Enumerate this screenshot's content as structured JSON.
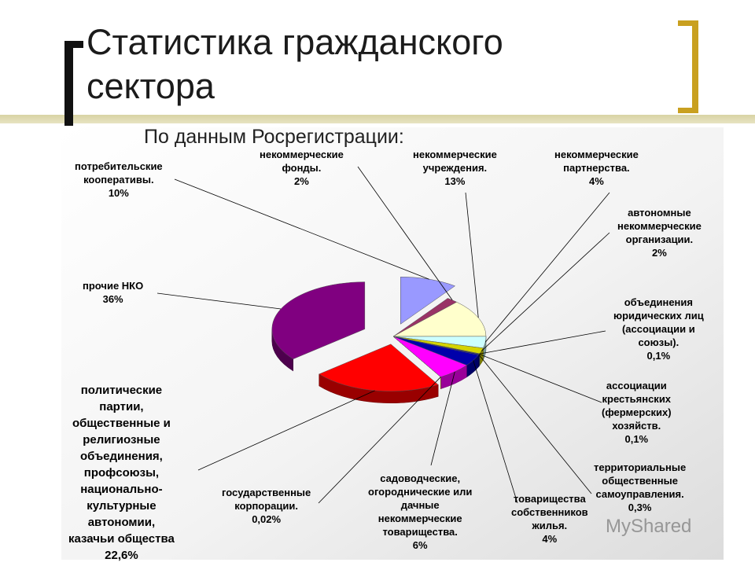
{
  "title_lines": [
    "Статистика гражданского",
    "сектора"
  ],
  "subtitle": "По данным Росрегистрации:",
  "watermark": "MyShared",
  "chart_data": {
    "type": "pie",
    "title": "",
    "slices": [
      {
        "name_lines": [
          "потребительские",
          "кооперативы."
        ],
        "value": 10,
        "value_label": "10%",
        "color": "#9999ff"
      },
      {
        "name_lines": [
          "некоммерческие",
          "фонды."
        ],
        "value": 2,
        "value_label": "2%",
        "color": "#993366"
      },
      {
        "name_lines": [
          "некоммерческие",
          "учреждения."
        ],
        "value": 13,
        "value_label": "13%",
        "color": "#ffffcc"
      },
      {
        "name_lines": [
          "некоммерческие",
          "партнерства."
        ],
        "value": 4,
        "value_label": "4%",
        "color": "#ccffff"
      },
      {
        "name_lines": [
          "автономные",
          "некоммерческие",
          "организации."
        ],
        "value": 2,
        "value_label": "2%",
        "color": "#d4d400"
      },
      {
        "name_lines": [
          "объединения",
          "юридических лиц",
          "(ассоциации и",
          "союзы)."
        ],
        "value": 0.1,
        "value_label": "0,1%",
        "color": "#0066cc"
      },
      {
        "name_lines": [
          "ассоциации",
          "крестьянских",
          "(фермерских)",
          "хозяйств."
        ],
        "value": 0.1,
        "value_label": "0,1%",
        "color": "#ccccff"
      },
      {
        "name_lines": [
          "территориальные",
          "общественные",
          "самоуправления."
        ],
        "value": 0.3,
        "value_label": "0,3%",
        "color": "#000080"
      },
      {
        "name_lines": [
          "товарищества",
          "собственников",
          "жилья."
        ],
        "value": 4,
        "value_label": "4%",
        "color": "#0000aa"
      },
      {
        "name_lines": [
          "садоводческие,",
          "огороднические или",
          "дачные",
          "некоммерческие",
          "товарищества."
        ],
        "value": 6,
        "value_label": "6%",
        "color": "#ff00ff"
      },
      {
        "name_lines": [
          "государственные",
          "корпорации."
        ],
        "value": 0.02,
        "value_label": "0,02%",
        "color": "#ffff00"
      },
      {
        "name_lines": [
          "политические",
          "партии,",
          "общественные и",
          "религиозные",
          "объединения,",
          "профсоюзы,",
          "национально-",
          "культурные",
          "автономии,",
          "казачьи общества"
        ],
        "value": 22.6,
        "value_label": "22,6%",
        "color": "#ff0000"
      },
      {
        "name_lines": [
          "прочие НКО"
        ],
        "value": 36,
        "value_label": "36%",
        "color": "#800080"
      }
    ]
  }
}
